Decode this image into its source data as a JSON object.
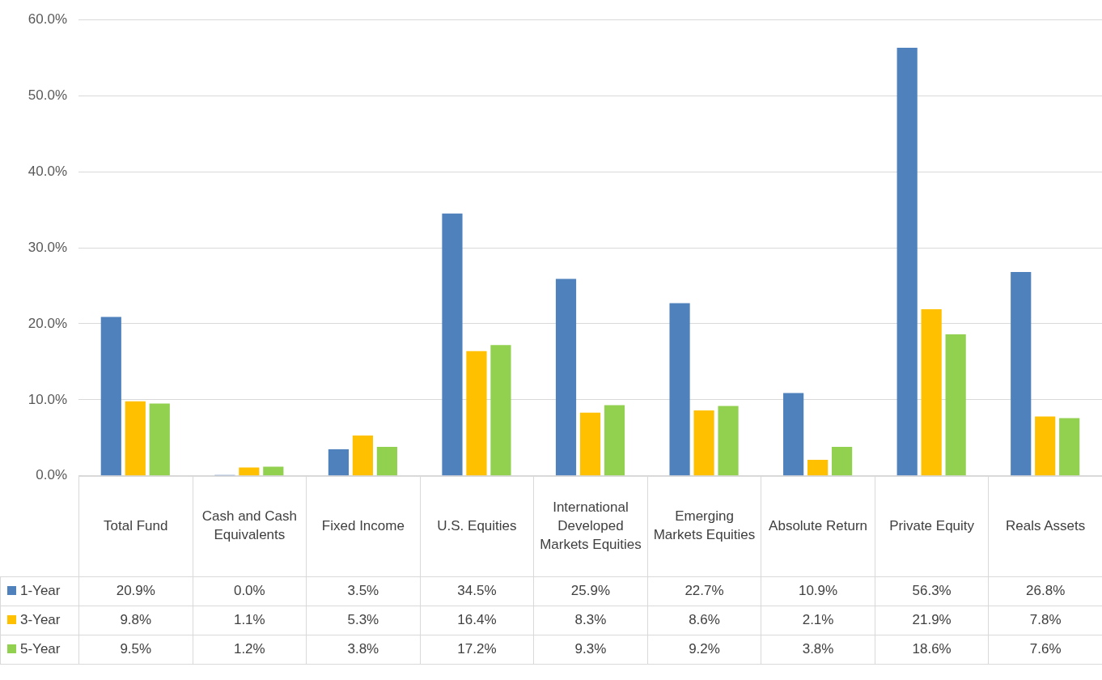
{
  "chart_data": {
    "type": "bar",
    "categories": [
      "Total Fund",
      "Cash and Cash Equivalents",
      "Fixed Income",
      "U.S. Equities",
      "International Developed Markets Equities",
      "Emerging Markets Equities",
      "Absolute Return",
      "Private Equity",
      "Reals Assets"
    ],
    "series": [
      {
        "name": "1-Year",
        "color": "#4f81bd",
        "values": [
          20.9,
          0.0,
          3.5,
          34.5,
          25.9,
          22.7,
          10.9,
          56.3,
          26.8
        ],
        "value_labels": [
          "20.9%",
          "0.0%",
          "3.5%",
          "34.5%",
          "25.9%",
          "22.7%",
          "10.9%",
          "56.3%",
          "26.8%"
        ]
      },
      {
        "name": "3-Year",
        "color": "#ffc000",
        "values": [
          9.8,
          1.1,
          5.3,
          16.4,
          8.3,
          8.6,
          2.1,
          21.9,
          7.8
        ],
        "value_labels": [
          "9.8%",
          "1.1%",
          "5.3%",
          "16.4%",
          "8.3%",
          "8.6%",
          "2.1%",
          "21.9%",
          "7.8%"
        ]
      },
      {
        "name": "5-Year",
        "color": "#92d050",
        "values": [
          9.5,
          1.2,
          3.8,
          17.2,
          9.3,
          9.2,
          3.8,
          18.6,
          7.6
        ],
        "value_labels": [
          "9.5%",
          "1.2%",
          "3.8%",
          "17.2%",
          "9.3%",
          "9.2%",
          "3.8%",
          "18.6%",
          "7.6%"
        ]
      }
    ],
    "ylim": [
      0,
      60
    ],
    "yticks": [
      {
        "value": 0,
        "label": "0.0%"
      },
      {
        "value": 10,
        "label": "10.0%"
      },
      {
        "value": 20,
        "label": "20.0%"
      },
      {
        "value": 30,
        "label": "30.0%"
      },
      {
        "value": 40,
        "label": "40.0%"
      },
      {
        "value": 50,
        "label": "50.0%"
      },
      {
        "value": 60,
        "label": "60.0%"
      }
    ],
    "grid": "y",
    "legend": "bottom"
  }
}
